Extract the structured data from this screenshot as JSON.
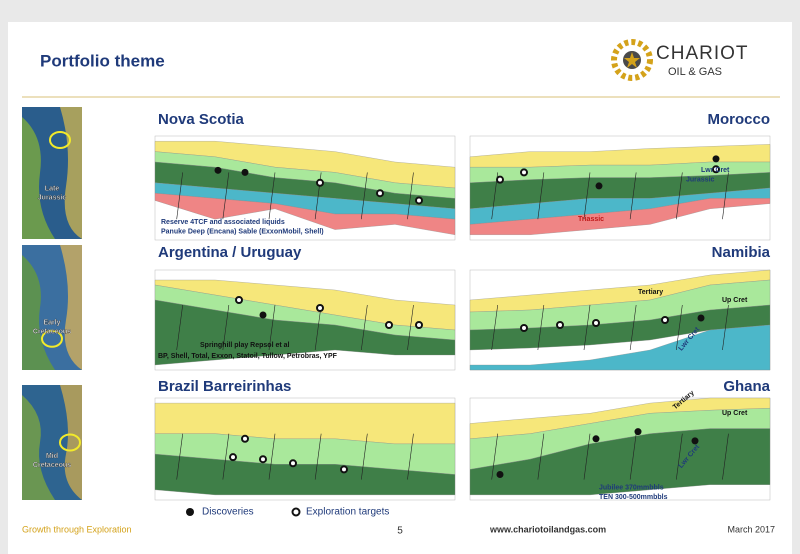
{
  "header": {
    "title": "Portfolio theme",
    "logo": {
      "name": "CHARIOT",
      "tagline": "OIL & GAS"
    }
  },
  "rows": [
    {
      "map_label": [
        "Late",
        "Jurassic"
      ],
      "panels": [
        {
          "region": "Nova Scotia",
          "labels": [
            "Reserve 4TCF and associated liquids",
            "Panuke Deep (Encana) Sable (ExxonMobil, Shell)"
          ]
        },
        {
          "region": "Morocco",
          "labels": [
            "Lwr Cret",
            "Jurassic",
            "Triassic"
          ]
        }
      ]
    },
    {
      "map_label": [
        "Early",
        "Cretaceous"
      ],
      "panels": [
        {
          "region": "Argentina / Uruguay",
          "labels": [
            "Springhill play Repsol et al",
            "BP, Shell,  Total, Exxon, Statoil, Tullow, Petrobras, YPF"
          ]
        },
        {
          "region": "Namibia",
          "labels": [
            "Tertiary",
            "Up Cret",
            "Lwr Cret"
          ]
        }
      ]
    },
    {
      "map_label": [
        "Mid",
        "Cretaceous"
      ],
      "panels": [
        {
          "region": "Brazil Barreirinhas",
          "labels": []
        },
        {
          "region": "Ghana",
          "labels": [
            "Tertiary",
            "Up Cret",
            "Lwr Cret",
            "Jubilee 370mmbbls",
            "TEN   300-500mmbbls"
          ]
        }
      ]
    }
  ],
  "legend": [
    "Discoveries",
    "Exploration targets"
  ],
  "footer": {
    "tagline": "Growth through Exploration",
    "page": "5",
    "website": "www.chariotoilandgas.com",
    "date": "March 2017"
  }
}
